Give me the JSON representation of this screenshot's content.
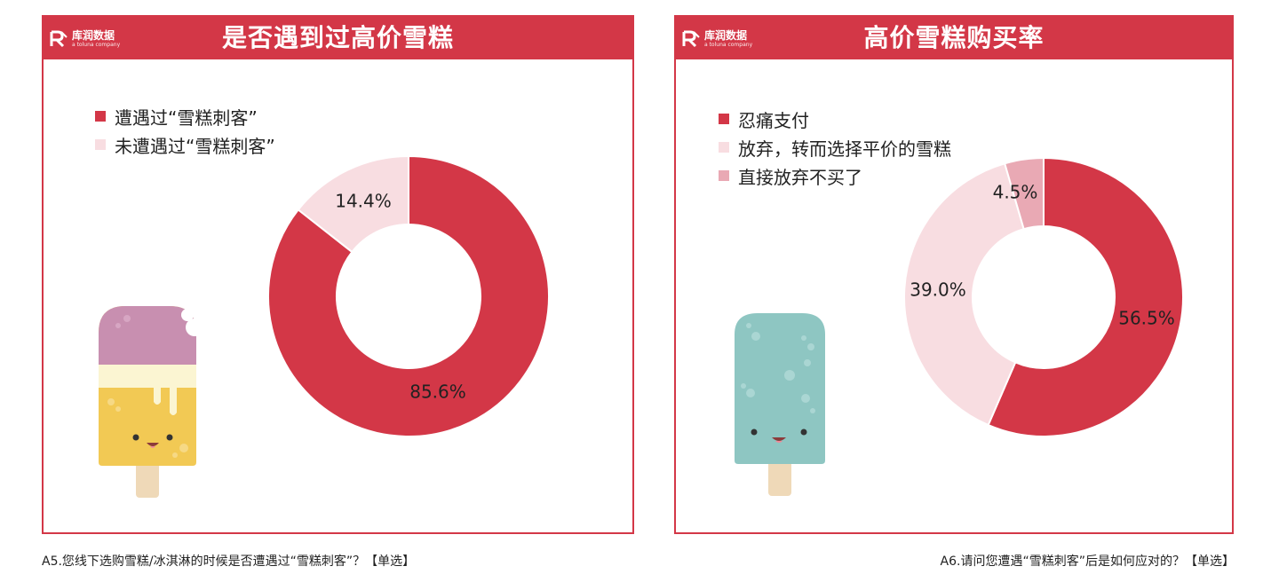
{
  "logo": {
    "name": "库润数据",
    "tagline": "a toluna company"
  },
  "colors": {
    "brand_red": "#d33747",
    "light_pink": "#f8dde1",
    "mid_pink": "#e9a9b4"
  },
  "left_panel": {
    "title": "是否遇到过高价雪糕",
    "caption": "A5.您线下选购雪糕/冰淇淋的时候是否遭遇过“雪糕刺客”？【单选】",
    "chart_data": {
      "type": "pie",
      "title": "是否遇到过高价雪糕",
      "categories": [
        "遭遇过“雪糕刺客”",
        "未遭遇过“雪糕刺客”"
      ],
      "values": [
        85.6,
        14.4
      ],
      "unit": "%",
      "data_labels": [
        "85.6%",
        "14.4%"
      ],
      "colors": [
        "#d33747",
        "#f8dde1"
      ],
      "donut": true,
      "legend_position": "top-left"
    }
  },
  "right_panel": {
    "title": "高价雪糕购买率",
    "caption": "A6.请问您遭遇“雪糕刺客”后是如何应对的？【单选】",
    "chart_data": {
      "type": "pie",
      "title": "高价雪糕购买率",
      "categories": [
        "忍痛支付",
        "放弃，转而选择平价的雪糕",
        "直接放弃不买了"
      ],
      "values": [
        56.5,
        39.0,
        4.5
      ],
      "unit": "%",
      "data_labels": [
        "56.5%",
        "39.0%",
        "4.5%"
      ],
      "colors": [
        "#d33747",
        "#f8dde1",
        "#e9a9b4"
      ],
      "donut": true,
      "legend_position": "top-left"
    }
  }
}
